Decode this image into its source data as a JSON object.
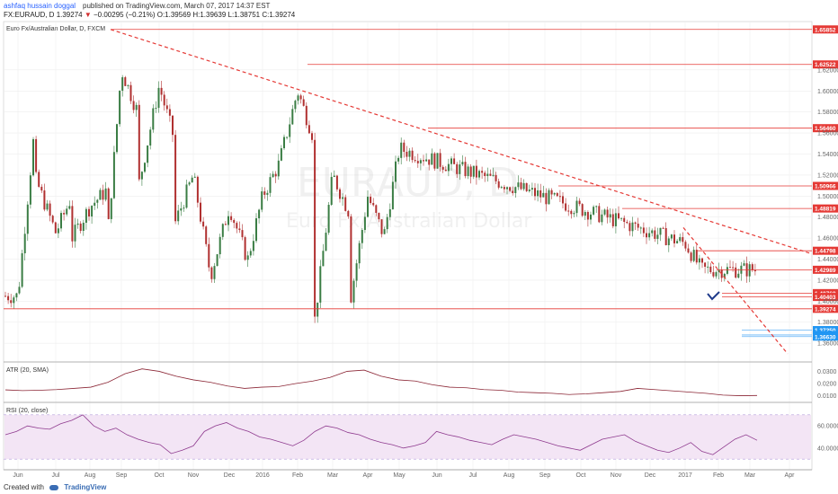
{
  "header": {
    "author": "ashfaq hussain doggal",
    "published": "published on TradingView.com, March 07, 2017 14:37 EST",
    "symbol": "FX:EURAUD, D",
    "last": "1.39274",
    "change": "−0.00295 (−0.21%)",
    "open": "O:1.39569",
    "high": "H:1.39639",
    "low": "L:1.38751",
    "close": "C:1.39274"
  },
  "chart_title": "Euro Fx/Australian Dollar, D, FXCM",
  "watermark": {
    "symbol": "EURAUD, D",
    "name": "Euro Fx/Australian Dollar"
  },
  "atr_label": "ATR (20, SMA)",
  "rsi_label": "RSI (20, close)",
  "footer": {
    "created": "Created with",
    "brand": "TradingView"
  },
  "colors": {
    "up": "#3a7d44",
    "down": "#b03030",
    "line": "#e53935",
    "blueline": "#64b5f6",
    "atr": "#8b2635",
    "rsi": "#8e3a8e",
    "rsiband": "#f3e5f5"
  },
  "chart_data": [
    {
      "type": "candlestick",
      "symbol": "FX:EURAUD",
      "title": "Euro Fx/Australian Dollar, D, FXCM",
      "x_ticks": [
        "Jun",
        "Jul",
        "Aug",
        "Sep",
        "Oct",
        "Nov",
        "Dec",
        "2016",
        "Feb",
        "Mar",
        "Apr",
        "May",
        "Jun",
        "Jul",
        "Aug",
        "Sep",
        "Oct",
        "Nov",
        "Dec",
        "2017",
        "Feb",
        "Mar",
        "Apr"
      ],
      "y_ticks": [
        1.62,
        1.6,
        1.58,
        1.56,
        1.54,
        1.52,
        1.5,
        1.48,
        1.46,
        1.44,
        1.42,
        1.4,
        1.38,
        1.36
      ],
      "ylim": [
        1.355,
        1.672
      ],
      "price_path": [
        [
          "Jun",
          1.405
        ],
        [
          "Jul",
          1.465
        ],
        [
          "Aug",
          1.49
        ],
        [
          "Aug",
          1.505
        ],
        [
          "Sep",
          1.62
        ],
        [
          "Sep",
          1.58
        ],
        [
          "Oct",
          1.605
        ],
        [
          "Oct",
          1.55
        ],
        [
          "Nov",
          1.52
        ],
        [
          "Dec",
          1.49
        ],
        [
          "Dec",
          1.445
        ],
        [
          "2016",
          1.5
        ],
        [
          "2016",
          1.53
        ],
        [
          "Feb",
          1.6
        ],
        [
          "Feb",
          1.555
        ],
        [
          "Mar",
          1.52
        ],
        [
          "Mar",
          1.485
        ],
        [
          "Apr",
          1.5
        ],
        [
          "Apr",
          1.462
        ],
        [
          "May",
          1.545
        ],
        [
          "Jun",
          1.56
        ],
        [
          "Jun",
          1.52
        ],
        [
          "Jul",
          1.5
        ],
        [
          "Jul",
          1.46
        ],
        [
          "Aug",
          1.47
        ],
        [
          "Aug",
          1.445
        ],
        [
          "Sep",
          1.48
        ],
        [
          "Sep",
          1.505
        ],
        [
          "Oct",
          1.46
        ],
        [
          "Oct",
          1.475
        ],
        [
          "Nov",
          1.43
        ],
        [
          "Nov",
          1.42
        ],
        [
          "Dec",
          1.425
        ],
        [
          "Dec",
          1.43
        ],
        [
          "2017",
          1.455
        ],
        [
          "2017",
          1.43
        ],
        [
          "Feb",
          1.415
        ],
        [
          "Feb",
          1.375
        ],
        [
          "Mar",
          1.39274
        ]
      ],
      "horizontal_levels": [
        {
          "value": 1.65852,
          "label": "1.65852"
        },
        {
          "value": 1.62522,
          "label": "1.62522"
        },
        {
          "value": 1.5646,
          "label": "1.56460"
        },
        {
          "value": 1.50966,
          "label": "1.50966"
        },
        {
          "value": 1.48819,
          "label": "1.48819"
        },
        {
          "value": 1.44798,
          "label": "1.44798"
        },
        {
          "value": 1.42989,
          "label": "1.42989"
        },
        {
          "value": 1.40768,
          "label": "1.40768"
        },
        {
          "value": 1.40403,
          "label": "1.40403"
        },
        {
          "value": 1.39274,
          "label": "1.39274"
        },
        {
          "value": 1.3725,
          "label": "1.37250"
        },
        {
          "value": 1.36785,
          "label": "1.36785"
        },
        {
          "value": 1.3663,
          "label": "1.36630"
        }
      ],
      "trendlines": [
        {
          "from": [
            "Aug",
            1.65852
          ],
          "to": [
            "Apr",
            1.445
          ]
        },
        {
          "from": [
            "2017",
            1.47
          ],
          "to": [
            "Apr",
            1.35
          ]
        }
      ]
    },
    {
      "type": "line",
      "title": "ATR (20, SMA)",
      "y_ticks": [
        0.03,
        0.02,
        0.01
      ],
      "ylim": [
        0.006,
        0.034
      ],
      "values": [
        0.0148,
        0.0142,
        0.0145,
        0.015,
        0.016,
        0.017,
        0.021,
        0.028,
        0.032,
        0.03,
        0.026,
        0.023,
        0.021,
        0.018,
        0.016,
        0.017,
        0.0175,
        0.02,
        0.022,
        0.025,
        0.03,
        0.031,
        0.026,
        0.023,
        0.022,
        0.019,
        0.017,
        0.0165,
        0.015,
        0.0145,
        0.013,
        0.0125,
        0.012,
        0.011,
        0.0115,
        0.0125,
        0.0135,
        0.016,
        0.015,
        0.014,
        0.013,
        0.012,
        0.0105,
        0.01,
        0.0102
      ]
    },
    {
      "type": "line",
      "title": "RSI (20, close)",
      "y_ticks": [
        60,
        40
      ],
      "ylim": [
        22,
        78
      ],
      "values": [
        52,
        55,
        60,
        58,
        57,
        62,
        65,
        70,
        60,
        55,
        58,
        52,
        48,
        45,
        43,
        35,
        38,
        42,
        55,
        60,
        63,
        58,
        55,
        50,
        48,
        45,
        42,
        47,
        55,
        60,
        58,
        54,
        52,
        48,
        45,
        43,
        40,
        42,
        45,
        55,
        52,
        50,
        47,
        45,
        43,
        48,
        52,
        50,
        48,
        45,
        42,
        40,
        38,
        43,
        48,
        50,
        52,
        46,
        42,
        38,
        36,
        40,
        45,
        37,
        34,
        41,
        48,
        52,
        47
      ]
    }
  ]
}
